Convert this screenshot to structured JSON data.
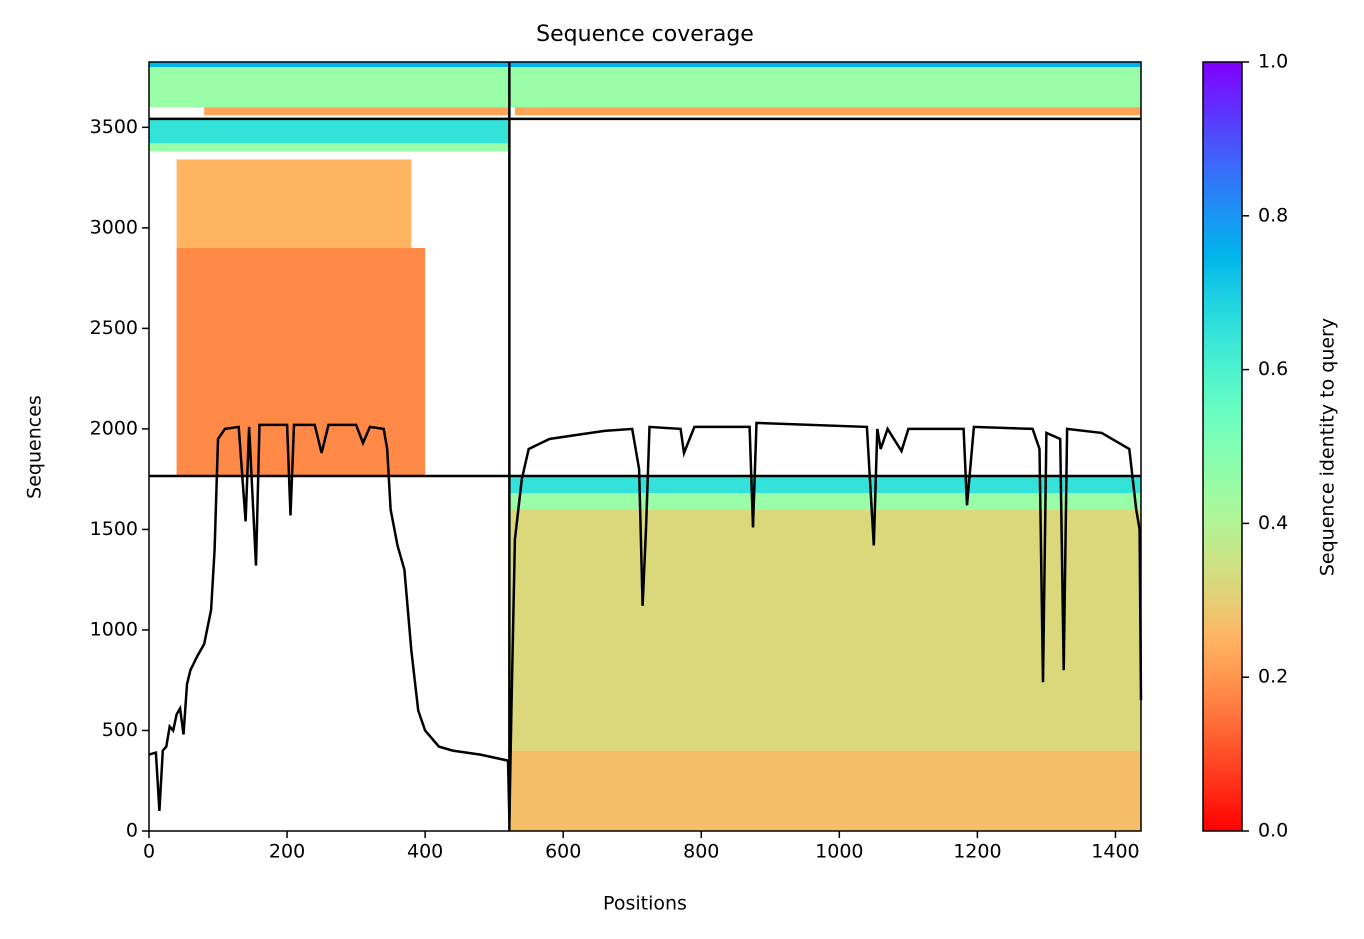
{
  "chart_data": {
    "type": "coverage",
    "title": "Sequence coverage",
    "xlabel": "Positions",
    "ylabel": "Sequences",
    "xlim": [
      0,
      1437
    ],
    "ylim": [
      0,
      3825
    ],
    "xticks": [
      0,
      200,
      400,
      600,
      800,
      1000,
      1200,
      1400
    ],
    "yticks": [
      0,
      500,
      1000,
      1500,
      2000,
      2500,
      3000,
      3500
    ],
    "colormap": "rainbow_r",
    "regions": [
      {
        "x": [
          0,
          522
        ],
        "y": [
          3800,
          3825
        ],
        "identity": 0.75
      },
      {
        "x": [
          0,
          522
        ],
        "y": [
          3600,
          3800
        ],
        "identity": 0.45
      },
      {
        "x": [
          80,
          522
        ],
        "y": [
          3560,
          3600
        ],
        "identity": 0.22
      },
      {
        "x": [
          522,
          1437
        ],
        "y": [
          3800,
          3825
        ],
        "identity": 0.75
      },
      {
        "x": [
          522,
          1437
        ],
        "y": [
          3600,
          3800
        ],
        "identity": 0.45
      },
      {
        "x": [
          530,
          1437
        ],
        "y": [
          3560,
          3600
        ],
        "identity": 0.22
      },
      {
        "x": [
          0,
          522
        ],
        "y": [
          3420,
          3542
        ],
        "identity": 0.65
      },
      {
        "x": [
          0,
          522
        ],
        "y": [
          3380,
          3420
        ],
        "identity": 0.45
      },
      {
        "x": [
          40,
          380
        ],
        "y": [
          2900,
          3340
        ],
        "identity": 0.25
      },
      {
        "x": [
          40,
          400
        ],
        "y": [
          1766,
          2900
        ],
        "identity": 0.18
      },
      {
        "x": [
          522,
          1437
        ],
        "y": [
          1680,
          1766
        ],
        "identity": 0.65
      },
      {
        "x": [
          522,
          1437
        ],
        "y": [
          1600,
          1680
        ],
        "identity": 0.45
      },
      {
        "x": [
          522,
          1437
        ],
        "y": [
          400,
          1600
        ],
        "identity": 0.32
      },
      {
        "x": [
          522,
          1437
        ],
        "y": [
          0,
          400
        ],
        "identity": 0.27
      }
    ],
    "boundaries": {
      "x": [
        522
      ],
      "y": [
        1766,
        3542
      ]
    },
    "line": {
      "color": "#000000",
      "x": [
        0,
        10,
        15,
        20,
        25,
        30,
        35,
        40,
        45,
        50,
        55,
        60,
        70,
        80,
        90,
        95,
        100,
        110,
        130,
        140,
        145,
        155,
        160,
        200,
        205,
        210,
        240,
        250,
        260,
        300,
        310,
        320,
        340,
        345,
        350,
        360,
        370,
        380,
        390,
        400,
        420,
        440,
        480,
        520,
        522,
        525,
        530,
        540,
        550,
        580,
        620,
        660,
        700,
        710,
        715,
        720,
        725,
        770,
        775,
        790,
        870,
        875,
        880,
        1040,
        1050,
        1055,
        1060,
        1070,
        1090,
        1100,
        1180,
        1185,
        1195,
        1280,
        1290,
        1295,
        1300,
        1320,
        1325,
        1330,
        1380,
        1420,
        1430,
        1435,
        1437
      ],
      "y": [
        380,
        390,
        100,
        400,
        420,
        520,
        500,
        580,
        610,
        480,
        730,
        800,
        870,
        930,
        1100,
        1400,
        1950,
        2000,
        2010,
        1540,
        2010,
        1320,
        2020,
        2020,
        1570,
        2020,
        2020,
        1880,
        2020,
        2020,
        1930,
        2010,
        2000,
        1900,
        1600,
        1420,
        1300,
        900,
        600,
        500,
        420,
        400,
        380,
        350,
        50,
        600,
        1450,
        1750,
        1900,
        1950,
        1970,
        1990,
        2000,
        1800,
        1120,
        1500,
        2010,
        2000,
        1880,
        2010,
        2010,
        1510,
        2030,
        2010,
        1420,
        2000,
        1900,
        2000,
        1890,
        2000,
        2000,
        1620,
        2010,
        2000,
        1900,
        740,
        1980,
        1950,
        800,
        2000,
        1980,
        1900,
        1600,
        1500,
        650
      ]
    },
    "colorbar": {
      "label": "Sequence identity to query",
      "lim": [
        0,
        1
      ],
      "ticks": [
        {
          "value": 0,
          "label": "0.0"
        },
        0.2,
        0.4,
        0.6,
        0.8,
        {
          "value": 1,
          "label": "1.0"
        }
      ]
    }
  }
}
